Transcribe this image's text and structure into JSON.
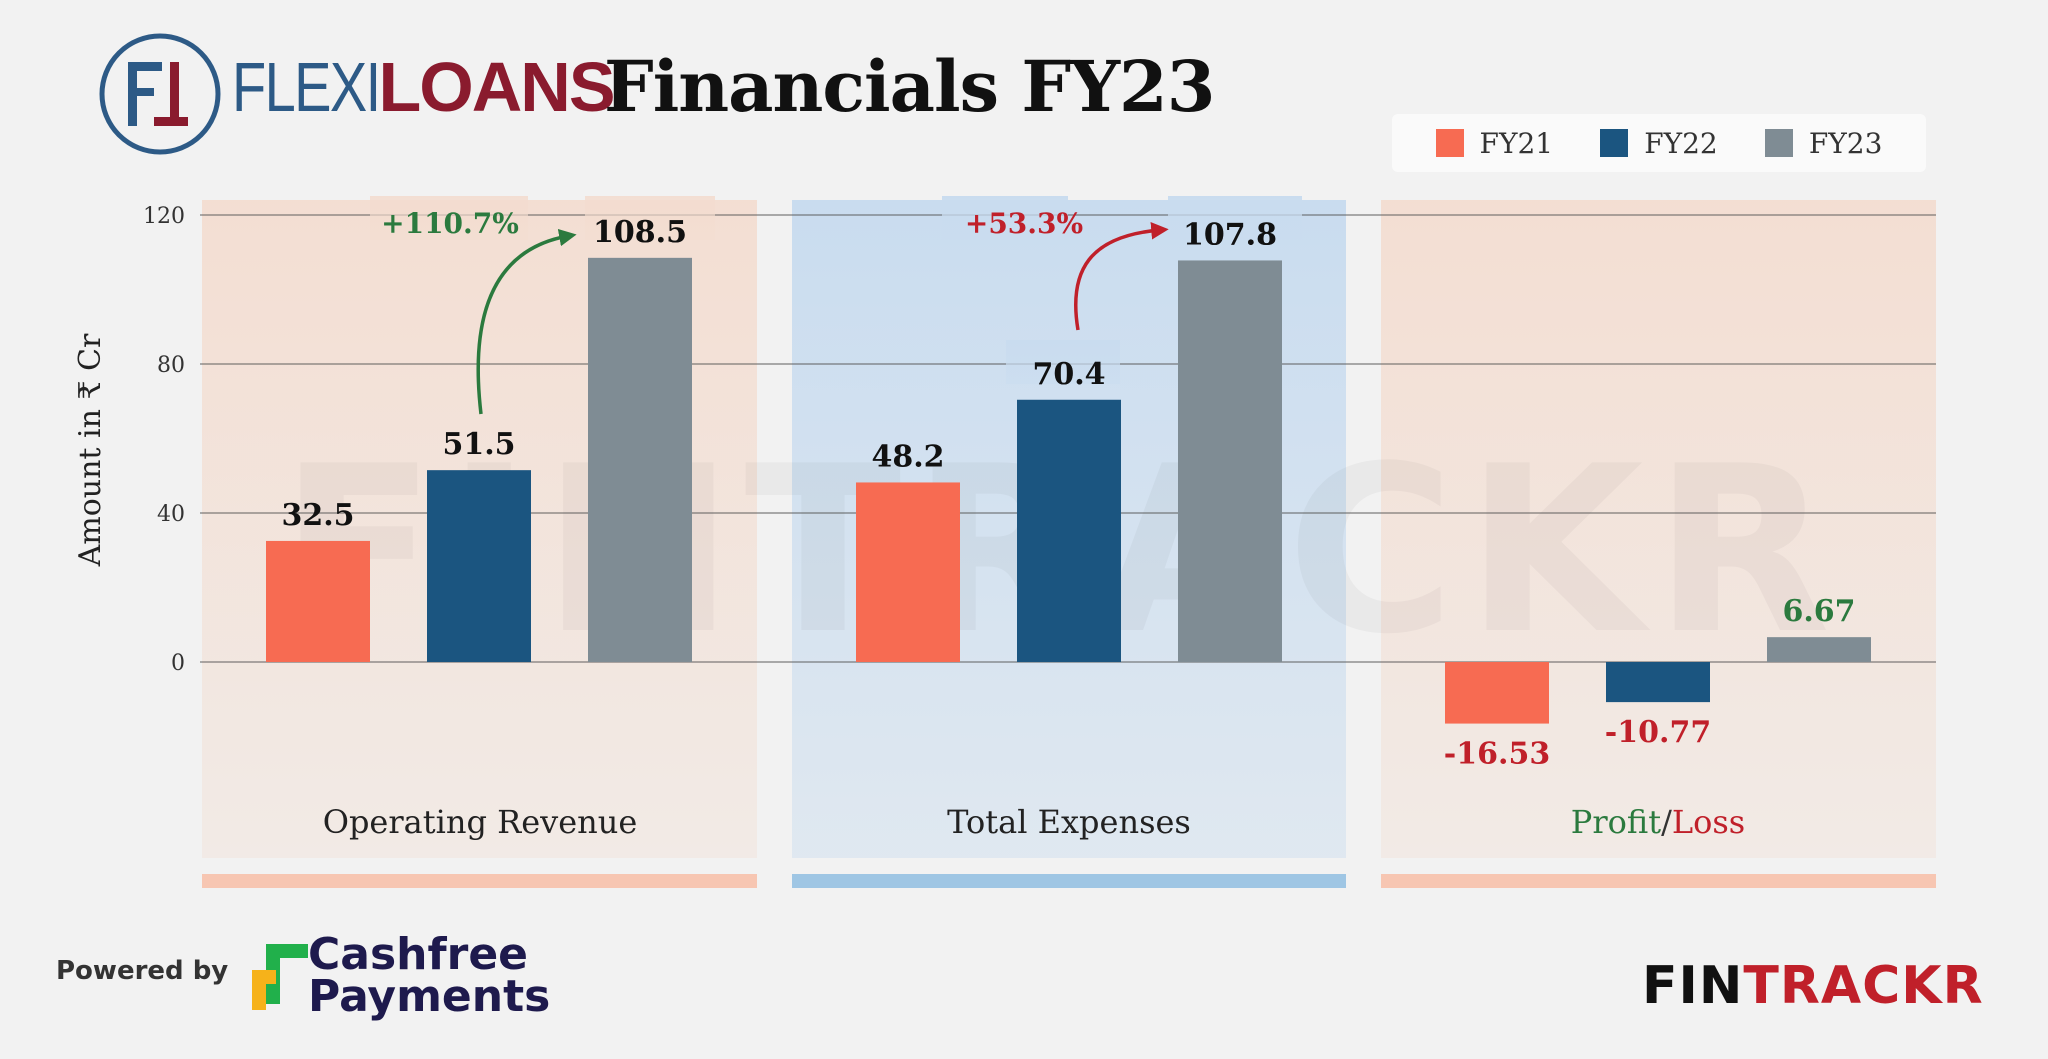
{
  "brand": {
    "flexi": "FLEXI",
    "loans": "LOANS",
    "colors": {
      "blue": "#2d5a86",
      "maroon": "#8a1b2e"
    }
  },
  "title": "Financials FY23",
  "legend": [
    {
      "label": "FY21",
      "color": "#f76b52"
    },
    {
      "label": "FY22",
      "color": "#1b5580"
    },
    {
      "label": "FY23",
      "color": "#7f8c94"
    }
  ],
  "chart_data": {
    "type": "bar",
    "ylabel": "Amount in ₹ Cr",
    "ylim": [
      -40,
      120
    ],
    "yticks": [
      0,
      40,
      80,
      120
    ],
    "series_names": [
      "FY21",
      "FY22",
      "FY23"
    ],
    "groups": [
      {
        "category": "Operating Revenue",
        "values": [
          32.5,
          51.5,
          108.5
        ],
        "labels": [
          "32.5",
          "51.5",
          "108.5"
        ],
        "growth": "+110.7%",
        "growth_color": "#2b7a3e"
      },
      {
        "category": "Total Expenses",
        "values": [
          48.2,
          70.4,
          107.8
        ],
        "labels": [
          "48.2",
          "70.4",
          "107.8"
        ],
        "growth": "+53.3%",
        "growth_color": "#c0202a"
      },
      {
        "category_parts": [
          {
            "text": "Profit",
            "color": "#2b7a3e"
          },
          {
            "text": "/",
            "color": "#333333"
          },
          {
            "text": "Loss",
            "color": "#c0202a"
          }
        ],
        "values": [
          -16.53,
          -10.77,
          6.67
        ],
        "labels": [
          "-16.53",
          "-10.77",
          "6.67"
        ]
      }
    ],
    "bar_colors": [
      "#f76b52",
      "#1b5580",
      "#7f8c94"
    ],
    "panel_colors": [
      "#f3dccf",
      "#c9dcef",
      "#f3dccf"
    ],
    "panel_stripe_colors": [
      "#f7c6b2",
      "#9fc6e4",
      "#f7c6b2"
    ],
    "positive_label_color": "#111111",
    "negative_label_color": "#c0202a",
    "gain_label_color": "#2b7a3e"
  },
  "watermark": "FINTRACKR",
  "footer": {
    "powered_by": "Powered by",
    "cashfree_line1": "Cashfree",
    "cashfree_line2": "Payments",
    "fintrackr_fin": "FIN",
    "fintrackr_rest": "TRACKR"
  }
}
